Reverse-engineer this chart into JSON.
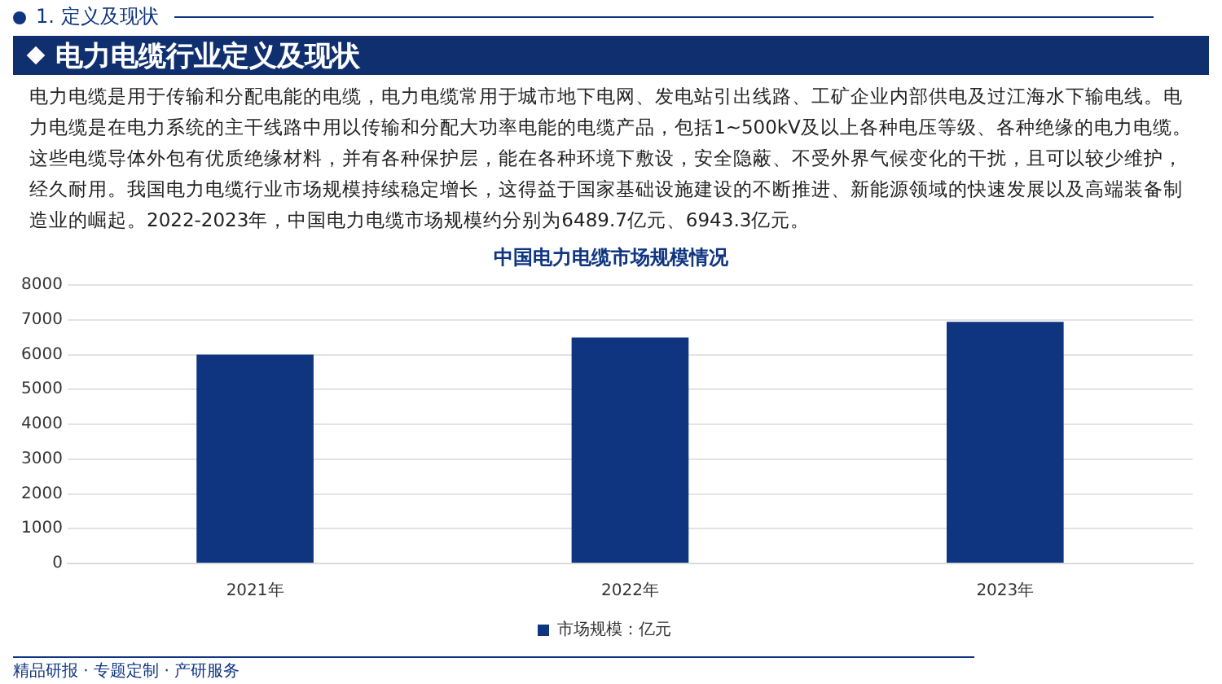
{
  "chart_data": {
    "type": "bar",
    "title": "中国电力电缆市场规模情况",
    "annotations": [
      "1. 定义及现状",
      "电力电缆行业定义及现状",
      "电力电缆是用于传输和分配电能的电缆，电力电缆常用于城市地下电网、发电站引出线路、工矿企业内部供电及过江海水下输电线。电力电缆是在电力系统的主干线路中用以传输和分配大功率电能的电缆产品，包括1~500kV及以上各种电压等级、各种绝缘的电力电缆。这些电缆导体外包有优质绝缘材料，并有各种保护层，能在各种环境下敷设，安全隐蔽、不受外界气候变化的干扰，且可以较少维护，经久耐用。我国电力电缆行业市场规模持续稳定增长，这得益于国家基础设施建设的不断推进、新能源领域的快速发展以及高端装备制造业的崛起。2022-2023年，中国电力电缆市场规模约分别为6489.7亿元、6943.3亿元。",
      "精品研报 · 专题定制 · 产研服务"
    ],
    "categories": [
      "2021年",
      "2022年",
      "2023年"
    ],
    "series": [
      {
        "name": "市场规模：亿元",
        "color": "#0f3580",
        "values": [
          6000,
          6489.7,
          6943.3
        ]
      }
    ],
    "ylim": [
      0,
      8000
    ],
    "yticks": [
      0,
      1000,
      2000,
      3000,
      4000,
      5000,
      6000,
      7000,
      8000
    ],
    "grid": "y",
    "legend": "bottom"
  }
}
